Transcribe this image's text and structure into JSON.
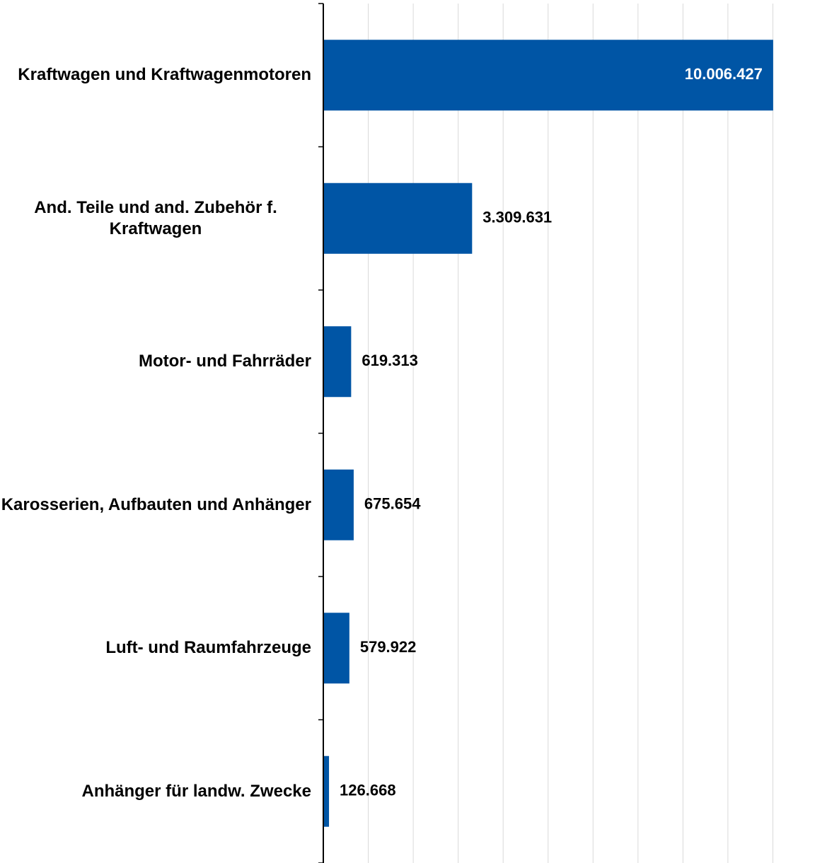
{
  "chart_data": {
    "type": "bar",
    "orientation": "horizontal",
    "categories": [
      "Kraftwagen und Kraftwagenmotoren",
      "And. Teile und and. Zubehör f. Kraftwagen",
      "Motor- und Fahrräder",
      "Karosserien, Aufbauten und Anhänger",
      "Luft- und Raumfahrzeuge",
      "Anhänger für landw. Zwecke"
    ],
    "values": [
      10006427,
      3309631,
      619313,
      675654,
      579922,
      126668
    ],
    "value_labels": [
      "10.006.427",
      "3.309.631",
      "619.313",
      "675.654",
      "579.922",
      "126.668"
    ],
    "color": "#0055a5",
    "xlim": [
      0,
      11000000
    ],
    "xticks": [
      0,
      1000000,
      2000000,
      3000000,
      4000000,
      5000000,
      6000000,
      7000000,
      8000000,
      9000000,
      10000000
    ],
    "grid": true
  }
}
